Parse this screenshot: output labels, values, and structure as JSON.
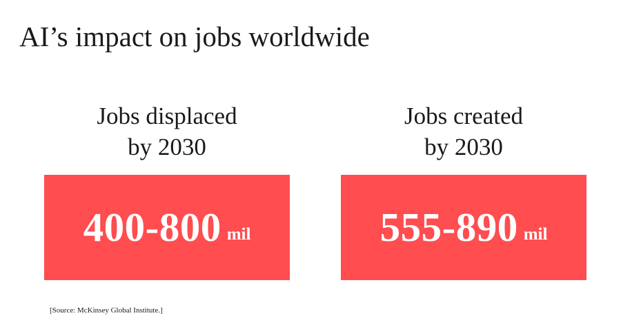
{
  "title": "AI’s impact on jobs worldwide",
  "stats": [
    {
      "label_line1": "Jobs displaced",
      "label_line2": "by 2030",
      "value": "400-800",
      "unit": "mil"
    },
    {
      "label_line1": "Jobs created",
      "label_line2": "by 2030",
      "value": "555-890",
      "unit": "mil"
    }
  ],
  "source": "[Source: McKinsey Global Institute.]",
  "colors": {
    "accent": "#ff4d50",
    "text": "#1a1a1a",
    "background": "#ffffff"
  }
}
